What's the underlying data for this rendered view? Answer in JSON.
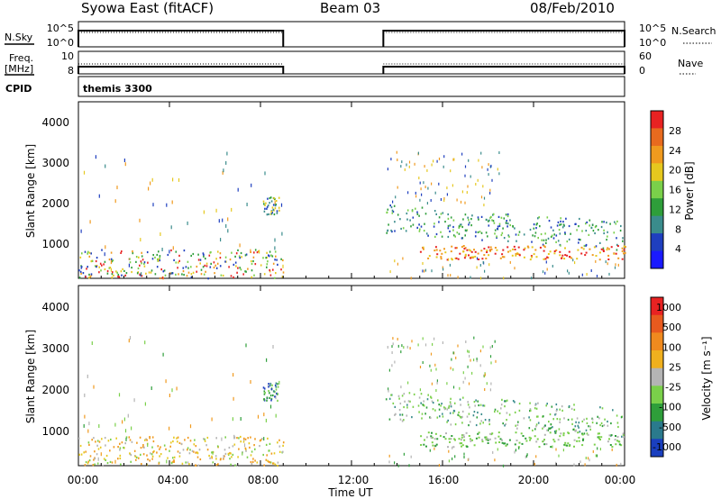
{
  "header": {
    "title": "Syowa East (fitACF)",
    "beam": "Beam 03",
    "date": "08/Feb/2010"
  },
  "side_labels": {
    "nsky": "N.Sky",
    "freq": "Freq.",
    "mhz": "[MHz]",
    "cpid": "CPID",
    "nsearch": "N.Search",
    "nave": "Nave"
  },
  "cpid_text": "themis 3300",
  "colors": {
    "blue": "#1f3fbf",
    "teal": "#3a8c8c",
    "green": "#2e9e3a",
    "ltgreen": "#7ad04a",
    "yellow": "#e6c81e",
    "orange": "#f09a1e",
    "red": "#e82222",
    "grey": "#b4b4b4"
  },
  "chart_data": [
    {
      "type": "line",
      "panel": "N.Sky / N.Search",
      "left_ticks": [
        "10^5",
        "10^0"
      ],
      "right_ticks": [
        "10^5",
        "10^0"
      ],
      "x_range_hours": [
        0,
        24
      ],
      "data_gap_hours": [
        9.0,
        13.4
      ]
    },
    {
      "type": "line",
      "panel": "Freq / Nave",
      "left_ticks": [
        "10",
        "8"
      ],
      "right_ticks": [
        "60",
        "0"
      ],
      "x_range_hours": [
        0,
        24
      ],
      "data_gap_hours": [
        9.0,
        13.4
      ]
    },
    {
      "type": "heatmap",
      "panel": "Power",
      "ylabel": "Slant Range [km]",
      "ylim": [
        180,
        4500
      ],
      "yticks": [
        "1000",
        "2000",
        "3000",
        "4000"
      ],
      "colorbar_label": "Power [dB]",
      "colorbar_ticks": [
        "4",
        "8",
        "12",
        "16",
        "20",
        "24",
        "28"
      ],
      "colorbar_colors": [
        "#1a1aff",
        "#1f3fbf",
        "#3a8c8c",
        "#2e9e3a",
        "#7ad04a",
        "#e6c81e",
        "#f09a1e",
        "#e86a1e",
        "#e82222"
      ]
    },
    {
      "type": "heatmap",
      "panel": "Velocity",
      "ylabel": "Slant Range [km]",
      "ylim": [
        180,
        4500
      ],
      "yticks": [
        "1000",
        "2000",
        "3000",
        "4000"
      ],
      "colorbar_label": "Velocity [m s⁻¹]",
      "colorbar_ticks": [
        "1000",
        "500",
        "100",
        "25",
        "-25",
        "-100",
        "-500",
        "-1000"
      ],
      "colorbar_colors": [
        "#1a3fbf",
        "#2a7a8c",
        "#2e9e3a",
        "#7ad04a",
        "#b4b4b4",
        "#f0b01e",
        "#f08a1e",
        "#e85a1e",
        "#e82222"
      ],
      "xlabel": "Time UT",
      "xticks": [
        "00:00",
        "04:00",
        "08:00",
        "12:00",
        "16:00",
        "20:00",
        "00:00"
      ]
    }
  ]
}
